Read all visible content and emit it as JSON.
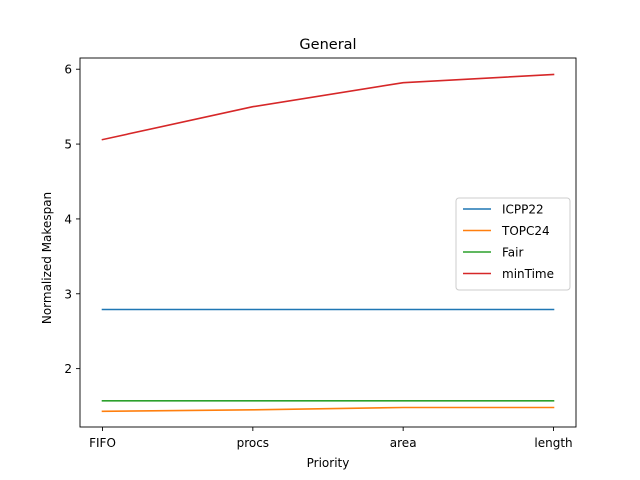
{
  "chart_data": {
    "type": "line",
    "title": "General",
    "xlabel": "Priority",
    "ylabel": "Normalized Makespan",
    "categories": [
      "FIFO",
      "procs",
      "area",
      "length"
    ],
    "ylim": [
      1.22,
      6.15
    ],
    "yticks": [
      2,
      3,
      4,
      5,
      6
    ],
    "ytick_labels": [
      "2",
      "3",
      "4",
      "5",
      "6"
    ],
    "grid": false,
    "legend_position": "center-right",
    "series": [
      {
        "name": "ICPP22",
        "color": "#1f77b4",
        "values": [
          2.79,
          2.79,
          2.79,
          2.79
        ]
      },
      {
        "name": "TOPC24",
        "color": "#ff7f0e",
        "values": [
          1.43,
          1.45,
          1.48,
          1.48
        ]
      },
      {
        "name": "Fair",
        "color": "#2ca02c",
        "values": [
          1.57,
          1.57,
          1.57,
          1.57
        ]
      },
      {
        "name": "minTime",
        "color": "#d62728",
        "values": [
          5.06,
          5.5,
          5.82,
          5.93
        ]
      }
    ]
  }
}
